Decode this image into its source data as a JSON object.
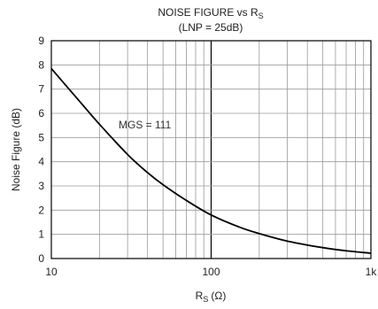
{
  "chart_data": {
    "type": "line",
    "title": "NOISE FIGURE vs R",
    "title_sub": "S",
    "subtitle": "(LNP = 25dB)",
    "xlabel": "R",
    "xlabel_sub": "S",
    "xlabel_unit": "(Ω)",
    "ylabel": "Noise Figure (dB)",
    "x_scale": "log",
    "xlim": [
      10,
      1000
    ],
    "ylim": [
      0,
      9
    ],
    "x_ticks": [
      10,
      100,
      1000
    ],
    "x_tick_labels": [
      "10",
      "100",
      "1k"
    ],
    "y_ticks": [
      0,
      1,
      2,
      3,
      4,
      5,
      6,
      7,
      8,
      9
    ],
    "y_tick_labels": [
      "0",
      "1",
      "2",
      "3",
      "4",
      "5",
      "6",
      "7",
      "8",
      "9"
    ],
    "grid": true,
    "annotation": "MGS = 111",
    "series": [
      {
        "x": [
          10,
          15,
          20,
          30,
          40,
          50,
          70,
          100,
          150,
          200,
          300,
          500,
          700,
          1000
        ],
        "y": [
          7.85,
          6.5,
          5.55,
          4.3,
          3.55,
          3.05,
          2.4,
          1.8,
          1.3,
          1.03,
          0.72,
          0.45,
          0.32,
          0.22
        ]
      }
    ],
    "line_color": "#000000",
    "grid_color": "#9a9a9a"
  }
}
